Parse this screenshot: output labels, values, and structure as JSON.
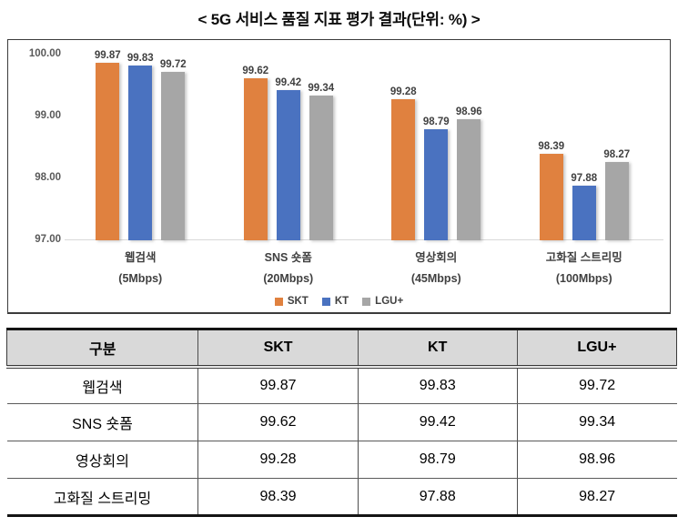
{
  "title": "< 5G 서비스 품질 지표 평가 결과(단위: %) >",
  "chart_data": {
    "type": "bar",
    "title": "5G 서비스 품질 지표 평가 결과",
    "unit": "%",
    "categories": [
      "웹검색",
      "SNS 숏폼",
      "영상회의",
      "고화질 스트리밍"
    ],
    "category_sublabels": [
      "(5Mbps)",
      "(20Mbps)",
      "(45Mbps)",
      "(100Mbps)"
    ],
    "series": [
      {
        "name": "SKT",
        "color": "#e0813f",
        "values": [
          99.87,
          99.62,
          99.28,
          98.39
        ]
      },
      {
        "name": "KT",
        "color": "#4a72c0",
        "values": [
          99.83,
          99.42,
          98.79,
          97.88
        ]
      },
      {
        "name": "LGU+",
        "color": "#a6a6a6",
        "values": [
          99.72,
          99.34,
          98.96,
          98.27
        ]
      }
    ],
    "ylim": [
      97,
      100
    ],
    "yticks": [
      {
        "value": 100,
        "label": "100.00"
      },
      {
        "value": 99,
        "label": "99.00"
      },
      {
        "value": 98,
        "label": "98.00"
      },
      {
        "value": 97,
        "label": "97.00"
      }
    ],
    "grid": false,
    "legend_position": "bottom-center",
    "data_labels": true,
    "label_format": "0.00"
  },
  "table": {
    "headers": [
      "구분",
      "SKT",
      "KT",
      "LGU+"
    ],
    "rows": [
      [
        "웹검색",
        "99.87",
        "99.83",
        "99.72"
      ],
      [
        "SNS 숏폼",
        "99.62",
        "99.42",
        "99.34"
      ],
      [
        "영상회의",
        "99.28",
        "98.79",
        "98.96"
      ],
      [
        "고화질 스트리밍",
        "98.39",
        "97.88",
        "98.27"
      ]
    ]
  }
}
